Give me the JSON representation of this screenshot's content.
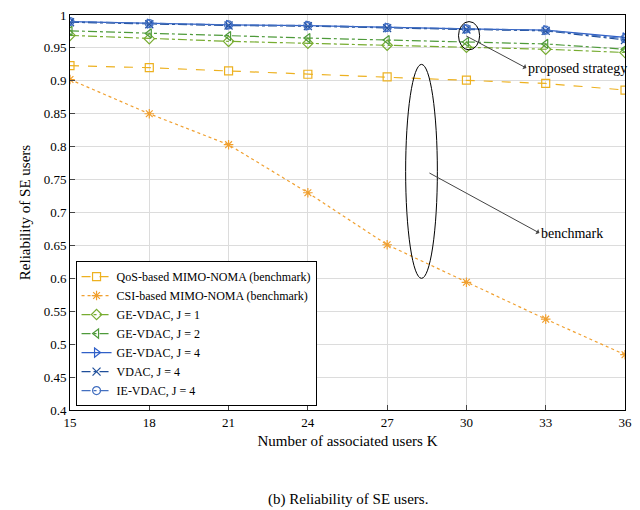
{
  "chart_data": {
    "type": "line",
    "x_label": "Number of associated users K",
    "y_label": "Reliability of SE users",
    "caption": "(b) Reliability of SE users.",
    "annotations": [
      "proposed strategy",
      "benchmark"
    ],
    "x": [
      15,
      18,
      21,
      24,
      27,
      30,
      33,
      36
    ],
    "xlim": [
      15,
      36
    ],
    "xticks": [
      15,
      18,
      21,
      24,
      27,
      30,
      33,
      36
    ],
    "ylim": [
      0.4,
      1
    ],
    "yticks": [
      0.4,
      0.45,
      0.5,
      0.55,
      0.6,
      0.65,
      0.7,
      0.75,
      0.8,
      0.85,
      0.9,
      0.95,
      1
    ],
    "grid": true,
    "legend": "bottom left",
    "series": [
      {
        "name": "QoS-based MIMO-NOMA (benchmark)",
        "color": "#EDB120",
        "marker": "square",
        "line_style": "dash",
        "values": [
          0.923,
          0.92,
          0.915,
          0.91,
          0.906,
          0.901,
          0.896,
          0.886
        ]
      },
      {
        "name": "CSI-based MIMO-NOMA (benchmark)",
        "color": "#F0A030",
        "marker": "asterisk",
        "line_style": "dot",
        "values": [
          0.902,
          0.85,
          0.803,
          0.73,
          0.651,
          0.594,
          0.538,
          0.484
        ]
      },
      {
        "name": "GE-VDAC, J = 1",
        "color": "#77AC30",
        "marker": "diamond",
        "line_style": "dashdot",
        "values": [
          0.969,
          0.964,
          0.96,
          0.957,
          0.954,
          0.951,
          0.948,
          0.943
        ]
      },
      {
        "name": "GE-VDAC, J = 2",
        "color": "#4E9A3A",
        "marker": "triangle-left",
        "line_style": "dashdot",
        "values": [
          0.976,
          0.972,
          0.968,
          0.965,
          0.962,
          0.959,
          0.956,
          0.948
        ]
      },
      {
        "name": "GE-VDAC, J = 4",
        "color": "#3060C8",
        "marker": "triangle-right",
        "line_style": "solid",
        "values": [
          0.99,
          0.987,
          0.985,
          0.984,
          0.981,
          0.979,
          0.977,
          0.966
        ]
      },
      {
        "name": "VDAC, J = 4",
        "color": "#1F4E9A",
        "marker": "x",
        "line_style": "dashdot",
        "values": [
          0.989,
          0.986,
          0.984,
          0.983,
          0.98,
          0.978,
          0.976,
          0.962
        ]
      },
      {
        "name": "IE-VDAC, J = 4",
        "color": "#4470C0",
        "marker": "circle",
        "line_style": "dashdot",
        "values": [
          0.99,
          0.987,
          0.985,
          0.984,
          0.981,
          0.979,
          0.977,
          0.964
        ]
      }
    ]
  }
}
